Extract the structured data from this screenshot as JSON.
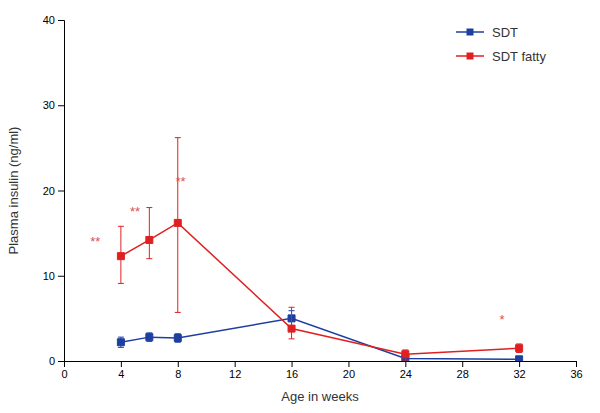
{
  "chart_data": {
    "type": "line",
    "xlabel": "Age in weeks",
    "ylabel": "Plasma insulin (ng/ml)",
    "x": [
      4,
      6,
      8,
      16,
      24,
      32
    ],
    "series": [
      {
        "name": "SDT",
        "color": "#1c3fa0",
        "marker": "square",
        "values": [
          2.2,
          2.8,
          2.7,
          5.0,
          0.3,
          0.2
        ],
        "error_low": [
          0.6,
          0.5,
          0.5,
          0.9,
          0.2,
          0.15
        ],
        "error_high": [
          0.6,
          0.5,
          0.5,
          0.9,
          0.2,
          0.15
        ]
      },
      {
        "name": "SDT fatty",
        "color": "#e02020",
        "marker": "square",
        "values": [
          12.3,
          14.2,
          16.2,
          3.8,
          0.8,
          1.5
        ],
        "error_low": [
          3.2,
          2.2,
          10.5,
          1.2,
          0.7,
          0.5
        ],
        "error_high": [
          3.5,
          3.8,
          10.0,
          2.5,
          0.5,
          0.5
        ]
      }
    ],
    "xlim": [
      0,
      36
    ],
    "ylim": [
      0,
      40
    ],
    "xticks": [
      0,
      4,
      8,
      12,
      16,
      20,
      24,
      28,
      32,
      36
    ],
    "yticks": [
      0,
      10,
      20,
      30,
      40
    ],
    "grid": false,
    "legend": "upper right",
    "annotations": [
      {
        "text": "**",
        "x": 2.2,
        "y": 13.5,
        "color": "#e05050"
      },
      {
        "text": "**",
        "x": 5.0,
        "y": 17.0,
        "color": "#e05050"
      },
      {
        "text": "**",
        "x": 8.2,
        "y": 20.5,
        "color": "#e05050"
      },
      {
        "text": "*",
        "x": 30.8,
        "y": 4.3,
        "color": "#e05050"
      }
    ]
  }
}
